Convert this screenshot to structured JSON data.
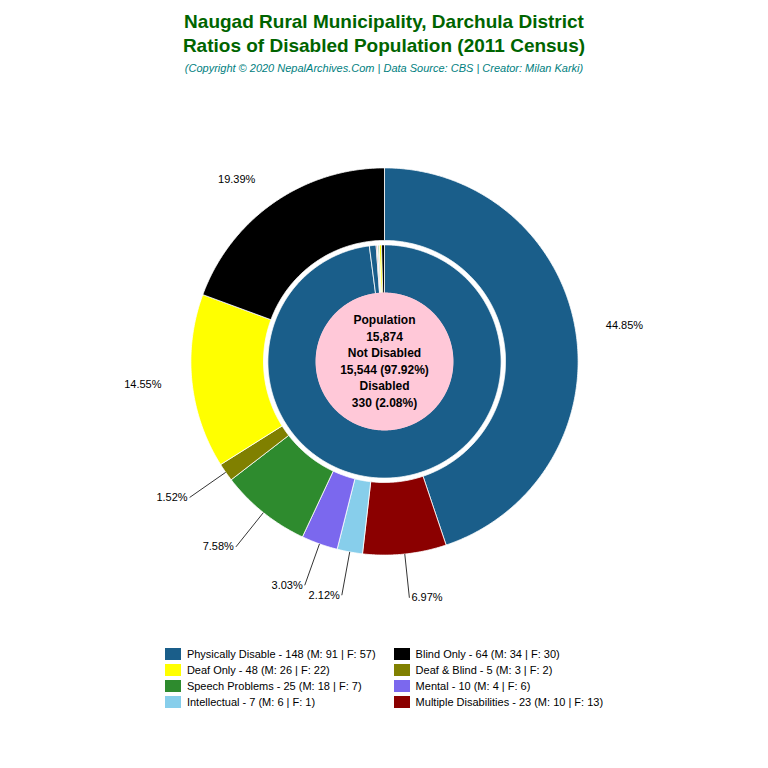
{
  "chart_data": {
    "type": "donut",
    "title": [
      "Naugad Rural Municipality, Darchula District",
      "Ratios of Disabled Population (2011 Census)"
    ],
    "title_color": "#006400",
    "subtitle": "(Copyright © 2020 NepalArchives.Com | Data Source: CBS | Creator: Milan Karki)",
    "subtitle_color": "#008080",
    "categories": [
      "Physically Disable - 148 (M: 91 | F: 57)",
      "Multiple Disabilities - 23 (M: 10 | F: 13)",
      "Intellectual - 7 (M: 6 | F: 1)",
      "Mental - 10 (M: 4 | F: 6)",
      "Speech Problems - 25 (M: 18 | F: 7)",
      "Deaf & Blind - 5 (M: 3 | F: 2)",
      "Deaf Only - 48 (M: 26 | F: 22)",
      "Blind Only - 64 (M: 34 | F: 30)"
    ],
    "values": [
      44.85,
      6.97,
      2.12,
      3.03,
      7.58,
      1.52,
      14.55,
      19.39
    ],
    "value_labels": [
      "44.85%",
      "6.97%",
      "2.12%",
      "3.03%",
      "7.58%",
      "1.52%",
      "14.55%",
      "19.39%"
    ],
    "colors": [
      "#1a5e8a",
      "#8b0000",
      "#87ceeb",
      "#7b68ee",
      "#2e8b2e",
      "#808000",
      "#ffff00",
      "#000000"
    ],
    "data_labels": true,
    "inner_ring": {
      "values": [
        15544,
        148,
        23,
        7,
        10,
        25,
        5,
        48,
        64
      ],
      "colors": [
        "#1a5e8a",
        "#1a5e8a",
        "#8b0000",
        "#87ceeb",
        "#7b68ee",
        "#2e8b2e",
        "#808000",
        "#ffff00",
        "#000000"
      ]
    },
    "center_color": "#ffc8d8",
    "edge_color": "#ffffff",
    "annotations": [
      "Population",
      "15,874",
      "Not Disabled",
      "15,544 (97.92%)",
      "Disabled",
      "330 (2.08%)"
    ],
    "legend": "bottom",
    "legend_labels": [
      "Physically Disable - 148 (M: 91 | F: 57)",
      "Deaf Only - 48 (M: 26 | F: 22)",
      "Speech Problems - 25 (M: 18 | F: 7)",
      "Intellectual - 7 (M: 6 | F: 1)",
      "Blind Only - 64 (M: 34 | F: 30)",
      "Deaf & Blind - 5 (M: 3 | F: 2)",
      "Mental - 10 (M: 4 | F: 6)",
      "Multiple Disabilities - 23 (M: 10 | F: 13)"
    ]
  }
}
